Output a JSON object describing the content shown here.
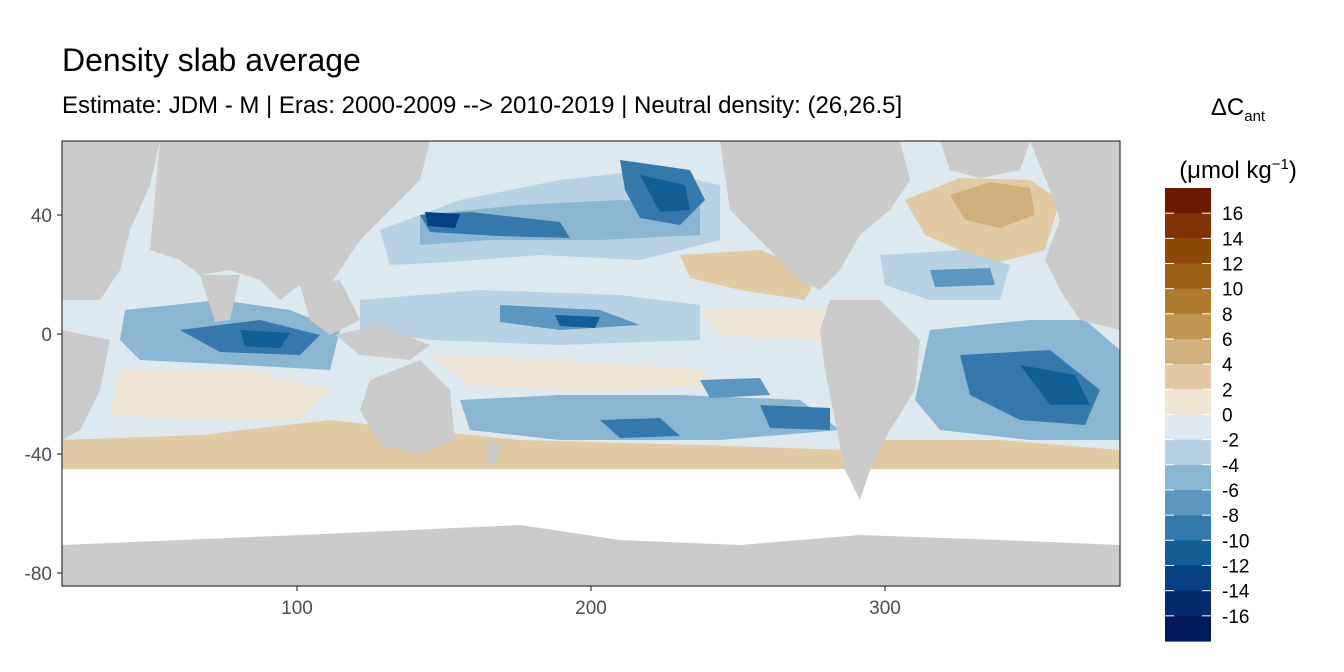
{
  "title": "Density slab average",
  "subtitle": "Estimate: JDM - M | Eras: 2000-2009 --> 2010-2019 | Neutral density: (26,26.5]",
  "legend": {
    "title_main": "ΔC",
    "title_sub": "ant",
    "unit_open": "(μmol kg",
    "unit_sup": "−1",
    "unit_close": ")",
    "breaks": [
      "16",
      "14",
      "12",
      "10",
      "8",
      "6",
      "4",
      "2",
      "0",
      "-2",
      "-4",
      "-6",
      "-8",
      "-10",
      "-12",
      "-14",
      "-16"
    ],
    "colors": [
      "#6a1a00",
      "#7f3304",
      "#8c4a08",
      "#9a6114",
      "#ac7b2e",
      "#bf9550",
      "#d0b07c",
      "#e2cba4",
      "#efe5d5",
      "#dde8ef",
      "#b9d2e3",
      "#8ab6d2",
      "#5b97c0",
      "#3578ac",
      "#125e97",
      "#063f82",
      "#042a6d",
      "#011a5b"
    ]
  },
  "axes": {
    "x_ticks": [
      "100",
      "200",
      "300"
    ],
    "y_ticks": [
      "40",
      "0",
      "-40",
      "-80"
    ]
  },
  "map_colors": {
    "land": "#cbcbcb",
    "no_data": "#ffffff",
    "panel_border": "#333333",
    "grid": "#ebebeb"
  },
  "chart_data": {
    "type": "heatmap",
    "title": "Density slab average",
    "subtitle": "Estimate: JDM - M | Eras: 2000-2009 --> 2010-2019 | Neutral density: (26,26.5]",
    "xlabel": "",
    "ylabel": "",
    "xlim": [
      20,
      380
    ],
    "ylim": [
      -85,
      63
    ],
    "x_ticks": [
      100,
      200,
      300
    ],
    "y_ticks": [
      40,
      0,
      -40,
      -80
    ],
    "legend_placement": "right",
    "colorbar_range": [
      -18,
      18
    ],
    "colorbar_step": 2,
    "regions": [
      {
        "lon": 220,
        "lat": 45,
        "value": -13
      },
      {
        "lon": 150,
        "lat": 38,
        "value": -13
      },
      {
        "lon": 195,
        "lat": 5,
        "value": -12
      },
      {
        "lon": 80,
        "lat": -5,
        "value": -10
      },
      {
        "lon": 350,
        "lat": -15,
        "value": -11
      },
      {
        "lon": 230,
        "lat": -33,
        "value": -10
      },
      {
        "lon": 270,
        "lat": -28,
        "value": -10
      },
      {
        "lon": 345,
        "lat": 48,
        "value": 5
      },
      {
        "lon": 240,
        "lat": 22,
        "value": 4
      },
      {
        "lon": 160,
        "lat": -15,
        "value": 2
      }
    ]
  }
}
